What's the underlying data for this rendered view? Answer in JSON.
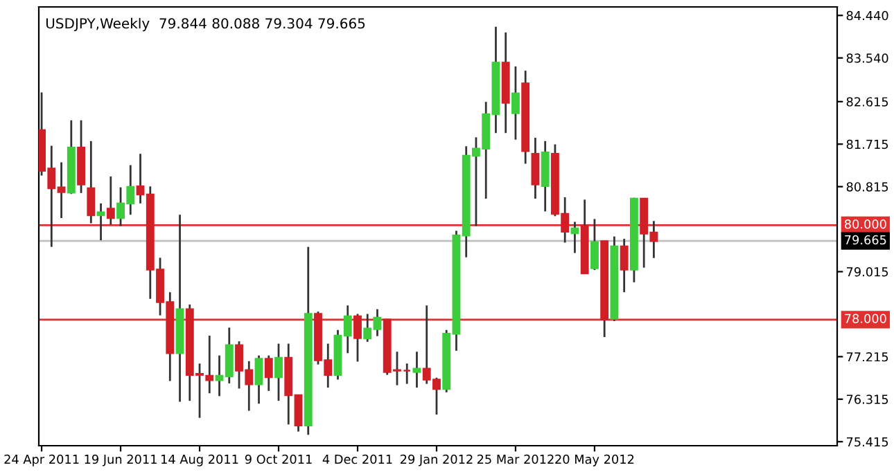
{
  "chart_data": {
    "type": "candlestick",
    "title": "USDJPY,Weekly  79.844 80.088 79.304 79.665",
    "x": [
      "2011-04-24",
      "2011-05-01",
      "2011-05-08",
      "2011-05-15",
      "2011-05-22",
      "2011-05-29",
      "2011-06-05",
      "2011-06-12",
      "2011-06-19",
      "2011-06-26",
      "2011-07-03",
      "2011-07-10",
      "2011-07-17",
      "2011-07-24",
      "2011-07-31",
      "2011-08-07",
      "2011-08-14",
      "2011-08-21",
      "2011-08-28",
      "2011-09-04",
      "2011-09-11",
      "2011-09-18",
      "2011-09-25",
      "2011-10-02",
      "2011-10-09",
      "2011-10-16",
      "2011-10-23",
      "2011-10-30",
      "2011-11-06",
      "2011-11-13",
      "2011-11-20",
      "2011-11-27",
      "2011-12-04",
      "2011-12-11",
      "2011-12-18",
      "2011-12-25",
      "2012-01-01",
      "2012-01-08",
      "2012-01-15",
      "2012-01-22",
      "2012-01-29",
      "2012-02-05",
      "2012-02-12",
      "2012-02-19",
      "2012-02-26",
      "2012-03-04",
      "2012-03-11",
      "2012-03-18",
      "2012-03-25",
      "2012-04-01",
      "2012-04-08",
      "2012-04-15",
      "2012-04-22",
      "2012-04-29",
      "2012-05-06",
      "2012-05-13",
      "2012-05-20",
      "2012-05-27",
      "2012-06-03",
      "2012-06-10",
      "2012-06-17",
      "2012-06-24",
      "2012-07-01"
    ],
    "ohlc": [
      [
        82.01,
        82.81,
        81.05,
        81.15
      ],
      [
        81.2,
        81.68,
        79.54,
        80.78
      ],
      [
        80.8,
        81.33,
        80.15,
        80.7
      ],
      [
        80.69,
        82.22,
        80.66,
        81.64
      ],
      [
        81.64,
        82.22,
        80.68,
        80.86
      ],
      [
        80.78,
        81.78,
        80.04,
        80.21
      ],
      [
        80.21,
        80.46,
        79.68,
        80.27
      ],
      [
        80.35,
        81.03,
        80.01,
        80.15
      ],
      [
        80.15,
        80.8,
        79.98,
        80.46
      ],
      [
        80.46,
        81.27,
        80.22,
        80.81
      ],
      [
        80.82,
        81.51,
        80.46,
        80.65
      ],
      [
        80.65,
        80.82,
        78.44,
        79.06
      ],
      [
        79.06,
        79.31,
        78.09,
        78.37
      ],
      [
        78.37,
        78.58,
        76.7,
        77.29
      ],
      [
        77.29,
        80.22,
        76.26,
        78.22
      ],
      [
        78.22,
        78.32,
        76.28,
        76.83
      ],
      [
        76.85,
        77.07,
        75.92,
        76.83
      ],
      [
        76.81,
        77.66,
        76.44,
        76.72
      ],
      [
        76.72,
        77.24,
        76.38,
        76.81
      ],
      [
        76.8,
        77.83,
        76.65,
        77.46
      ],
      [
        77.46,
        77.54,
        76.54,
        76.92
      ],
      [
        76.93,
        77.12,
        76.07,
        76.63
      ],
      [
        76.63,
        77.24,
        76.22,
        77.17
      ],
      [
        77.17,
        77.24,
        76.49,
        76.78
      ],
      [
        76.78,
        77.49,
        76.28,
        77.19
      ],
      [
        77.19,
        77.49,
        75.78,
        76.4
      ],
      [
        76.4,
        76.4,
        75.63,
        75.76
      ],
      [
        75.76,
        79.54,
        75.56,
        78.12
      ],
      [
        78.12,
        78.17,
        77.05,
        77.14
      ],
      [
        77.14,
        77.49,
        76.56,
        76.83
      ],
      [
        76.83,
        77.78,
        76.73,
        77.66
      ],
      [
        77.66,
        78.3,
        77.29,
        78.07
      ],
      [
        78.07,
        78.12,
        77.11,
        77.61
      ],
      [
        77.6,
        78.12,
        77.53,
        77.81
      ],
      [
        77.8,
        78.22,
        77.65,
        78.04
      ],
      [
        78.0,
        78.0,
        76.83,
        76.89
      ],
      [
        76.93,
        77.32,
        76.61,
        76.92
      ],
      [
        76.92,
        77.07,
        76.64,
        76.92
      ],
      [
        76.89,
        77.32,
        76.56,
        76.96
      ],
      [
        76.96,
        78.3,
        76.64,
        76.73
      ],
      [
        76.73,
        76.77,
        75.99,
        76.53
      ],
      [
        76.53,
        77.78,
        76.46,
        77.7
      ],
      [
        77.7,
        79.88,
        77.34,
        79.78
      ],
      [
        79.78,
        81.67,
        79.32,
        81.47
      ],
      [
        81.47,
        81.86,
        79.98,
        81.62
      ],
      [
        81.62,
        82.61,
        80.56,
        82.35
      ],
      [
        82.35,
        84.2,
        81.95,
        83.44
      ],
      [
        83.44,
        84.08,
        81.95,
        82.59
      ],
      [
        82.37,
        83.36,
        81.81,
        82.79
      ],
      [
        83.0,
        83.27,
        81.3,
        81.57
      ],
      [
        81.51,
        81.85,
        80.56,
        80.86
      ],
      [
        80.83,
        81.78,
        80.29,
        81.54
      ],
      [
        81.51,
        81.71,
        80.19,
        80.24
      ],
      [
        80.24,
        80.59,
        79.63,
        79.86
      ],
      [
        79.83,
        80.07,
        79.41,
        79.93
      ],
      [
        79.98,
        80.54,
        78.98,
        78.98
      ],
      [
        79.09,
        80.13,
        79.05,
        79.64
      ],
      [
        79.66,
        79.66,
        77.63,
        78.0
      ],
      [
        78.02,
        79.76,
        77.97,
        79.55
      ],
      [
        79.55,
        79.71,
        78.58,
        79.06
      ],
      [
        79.06,
        80.58,
        78.79,
        80.56
      ],
      [
        80.56,
        80.56,
        79.1,
        79.82
      ],
      [
        79.844,
        80.088,
        79.304,
        79.665
      ]
    ],
    "colors": [
      "#d01f26",
      "#d01f26",
      "#d01f26",
      "#3ccc3c",
      "#d01f26",
      "#d01f26",
      "#3ccc3c",
      "#d01f26",
      "#3ccc3c",
      "#3ccc3c",
      "#d01f26",
      "#d01f26",
      "#d01f26",
      "#d01f26",
      "#3ccc3c",
      "#d01f26",
      "#d01f26",
      "#d01f26",
      "#3ccc3c",
      "#3ccc3c",
      "#d01f26",
      "#d01f26",
      "#3ccc3c",
      "#d01f26",
      "#3ccc3c",
      "#d01f26",
      "#d01f26",
      "#3ccc3c",
      "#d01f26",
      "#d01f26",
      "#3ccc3c",
      "#3ccc3c",
      "#d01f26",
      "#3ccc3c",
      "#3ccc3c",
      "#d01f26",
      "#d01f26",
      "#d01f26",
      "#3ccc3c",
      "#d01f26",
      "#d01f26",
      "#3ccc3c",
      "#3ccc3c",
      "#3ccc3c",
      "#3ccc3c",
      "#3ccc3c",
      "#3ccc3c",
      "#d01f26",
      "#3ccc3c",
      "#d01f26",
      "#d01f26",
      "#3ccc3c",
      "#d01f26",
      "#d01f26",
      "#3ccc3c",
      "#d01f26",
      "#3ccc3c",
      "#d01f26",
      "#3ccc3c",
      "#d01f26",
      "#3ccc3c",
      "#d01f26",
      "#d01f26"
    ],
    "xlim": [
      "2011-04-22",
      "2012-11-08"
    ],
    "xticks": [
      {
        "value": "2011-04-24",
        "label": "24 Apr 2011"
      },
      {
        "value": "2011-06-19",
        "label": "19 Jun 2011"
      },
      {
        "value": "2011-08-14",
        "label": "14 Aug 2011"
      },
      {
        "value": "2011-10-09",
        "label": "9 Oct 2011"
      },
      {
        "value": "2011-12-04",
        "label": "4 Dec 2011"
      },
      {
        "value": "2012-01-29",
        "label": "29 Jan 2012"
      },
      {
        "value": "2012-03-25",
        "label": "25 Mar 2012"
      },
      {
        "value": "2012-05-20",
        "label": "20 May 2012"
      }
    ],
    "ylim": [
      75.33,
      84.62
    ],
    "yticks": [
      {
        "value": 84.44,
        "label": "84.440"
      },
      {
        "value": 83.54,
        "label": "83.540"
      },
      {
        "value": 82.615,
        "label": "82.615"
      },
      {
        "value": 81.715,
        "label": "81.715"
      },
      {
        "value": 80.815,
        "label": "80.815"
      },
      {
        "value": 79.015,
        "label": "79.015"
      },
      {
        "value": 77.215,
        "label": "77.215"
      },
      {
        "value": 76.315,
        "label": "76.315"
      },
      {
        "value": 75.415,
        "label": "75.415"
      }
    ],
    "ref_lines": [
      {
        "axis": "y",
        "value": 80.0,
        "label": "80.000",
        "color": "#e03030"
      },
      {
        "axis": "y",
        "value": 78.0,
        "label": "78.000",
        "color": "#e03030"
      },
      {
        "axis": "y",
        "value": 79.665,
        "label": "79.665",
        "color": "#c0c0c0"
      }
    ],
    "grid": false,
    "legend": false
  }
}
